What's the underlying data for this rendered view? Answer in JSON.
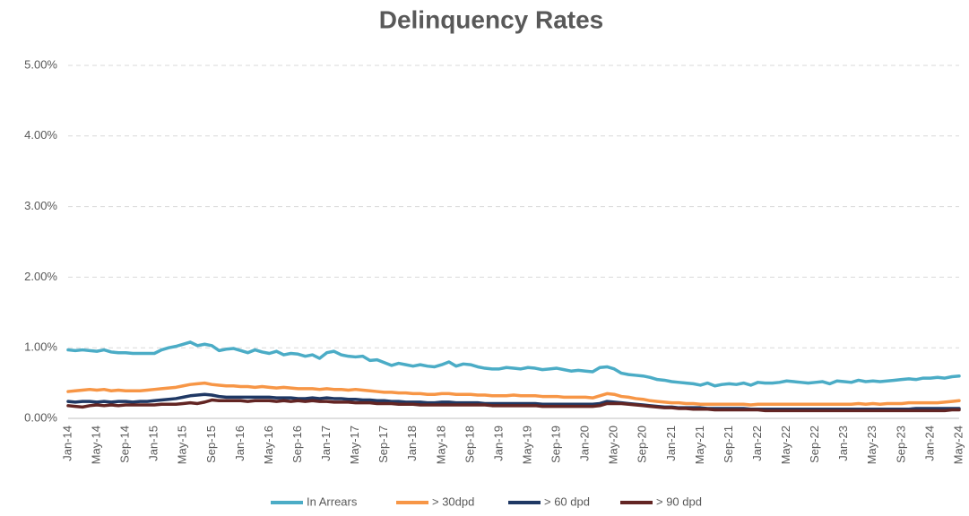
{
  "chart_data": {
    "type": "line",
    "title": "Delinquency Rates",
    "categories": [
      "Jan-14",
      null,
      null,
      null,
      "May-14",
      null,
      null,
      null,
      "Sep-14",
      null,
      null,
      null,
      "Jan-15",
      null,
      null,
      null,
      "May-15",
      null,
      null,
      null,
      "Sep-15",
      null,
      null,
      null,
      "Jan-16",
      null,
      null,
      null,
      "May-16",
      null,
      null,
      null,
      "Sep-16",
      null,
      null,
      null,
      "Jan-17",
      null,
      null,
      null,
      "May-17",
      null,
      null,
      null,
      "Sep-17",
      null,
      null,
      null,
      "Jan-18",
      null,
      null,
      null,
      "May-18",
      null,
      null,
      null,
      "Sep-18",
      null,
      null,
      null,
      "Jan-19",
      null,
      null,
      null,
      "May-19",
      null,
      null,
      null,
      "Sep-19",
      null,
      null,
      null,
      "Jan-20",
      null,
      null,
      null,
      "May-20",
      null,
      null,
      null,
      "Sep-20",
      null,
      null,
      null,
      "Jan-21",
      null,
      null,
      null,
      "May-21",
      null,
      null,
      null,
      "Sep-21",
      null,
      null,
      null,
      "Jan-22",
      null,
      null,
      null,
      "May-22",
      null,
      null,
      null,
      "Sep-22",
      null,
      null,
      null,
      "Jan-23",
      null,
      null,
      null,
      "May-23",
      null,
      null,
      null,
      "Sep-23",
      null,
      null,
      null,
      "Jan-24",
      null,
      null,
      null,
      "May-24"
    ],
    "series": [
      {
        "name": "In Arrears",
        "color": "#4bacc6",
        "values": [
          0.97,
          0.96,
          0.97,
          0.96,
          0.95,
          0.97,
          0.94,
          0.93,
          0.93,
          0.92,
          0.92,
          0.92,
          0.92,
          0.97,
          1.0,
          1.02,
          1.05,
          1.08,
          1.03,
          1.05,
          1.03,
          0.96,
          0.98,
          0.99,
          0.96,
          0.93,
          0.97,
          0.94,
          0.92,
          0.95,
          0.9,
          0.92,
          0.91,
          0.88,
          0.9,
          0.85,
          0.93,
          0.95,
          0.9,
          0.88,
          0.87,
          0.88,
          0.82,
          0.83,
          0.79,
          0.75,
          0.78,
          0.76,
          0.74,
          0.76,
          0.74,
          0.73,
          0.76,
          0.8,
          0.74,
          0.77,
          0.76,
          0.73,
          0.71,
          0.7,
          0.7,
          0.72,
          0.71,
          0.7,
          0.72,
          0.71,
          0.69,
          0.7,
          0.71,
          0.69,
          0.67,
          0.68,
          0.67,
          0.66,
          0.72,
          0.73,
          0.7,
          0.64,
          0.62,
          0.61,
          0.6,
          0.58,
          0.55,
          0.54,
          0.52,
          0.51,
          0.5,
          0.49,
          0.47,
          0.5,
          0.46,
          0.48,
          0.49,
          0.48,
          0.5,
          0.47,
          0.51,
          0.5,
          0.5,
          0.51,
          0.53,
          0.52,
          0.51,
          0.5,
          0.51,
          0.52,
          0.49,
          0.53,
          0.52,
          0.51,
          0.54,
          0.52,
          0.53,
          0.52,
          0.53,
          0.54,
          0.55,
          0.56,
          0.55,
          0.57,
          0.57,
          0.58,
          0.57,
          0.59,
          0.6
        ]
      },
      {
        "name": "> 30dpd",
        "color": "#f79646",
        "values": [
          0.38,
          0.39,
          0.4,
          0.41,
          0.4,
          0.41,
          0.39,
          0.4,
          0.39,
          0.39,
          0.39,
          0.4,
          0.41,
          0.42,
          0.43,
          0.44,
          0.46,
          0.48,
          0.49,
          0.5,
          0.48,
          0.47,
          0.46,
          0.46,
          0.45,
          0.45,
          0.44,
          0.45,
          0.44,
          0.43,
          0.44,
          0.43,
          0.42,
          0.42,
          0.42,
          0.41,
          0.42,
          0.41,
          0.41,
          0.4,
          0.41,
          0.4,
          0.39,
          0.38,
          0.37,
          0.37,
          0.36,
          0.36,
          0.35,
          0.35,
          0.34,
          0.34,
          0.35,
          0.35,
          0.34,
          0.34,
          0.34,
          0.33,
          0.33,
          0.32,
          0.32,
          0.32,
          0.33,
          0.32,
          0.32,
          0.32,
          0.31,
          0.31,
          0.31,
          0.3,
          0.3,
          0.3,
          0.3,
          0.29,
          0.32,
          0.35,
          0.34,
          0.31,
          0.3,
          0.28,
          0.27,
          0.25,
          0.24,
          0.23,
          0.22,
          0.22,
          0.21,
          0.21,
          0.2,
          0.2,
          0.2,
          0.2,
          0.2,
          0.2,
          0.2,
          0.19,
          0.2,
          0.2,
          0.2,
          0.2,
          0.2,
          0.2,
          0.2,
          0.2,
          0.2,
          0.2,
          0.2,
          0.2,
          0.2,
          0.2,
          0.21,
          0.2,
          0.21,
          0.2,
          0.21,
          0.21,
          0.21,
          0.22,
          0.22,
          0.22,
          0.22,
          0.22,
          0.23,
          0.24,
          0.25
        ]
      },
      {
        "name": "> 60 dpd",
        "color": "#1f3864",
        "values": [
          0.24,
          0.23,
          0.24,
          0.24,
          0.23,
          0.24,
          0.23,
          0.24,
          0.24,
          0.23,
          0.24,
          0.24,
          0.25,
          0.26,
          0.27,
          0.28,
          0.3,
          0.32,
          0.33,
          0.34,
          0.33,
          0.31,
          0.3,
          0.3,
          0.3,
          0.3,
          0.3,
          0.3,
          0.3,
          0.29,
          0.29,
          0.29,
          0.28,
          0.28,
          0.29,
          0.28,
          0.29,
          0.28,
          0.28,
          0.27,
          0.27,
          0.26,
          0.26,
          0.25,
          0.25,
          0.24,
          0.24,
          0.23,
          0.23,
          0.23,
          0.22,
          0.22,
          0.23,
          0.23,
          0.22,
          0.22,
          0.22,
          0.22,
          0.21,
          0.21,
          0.21,
          0.21,
          0.21,
          0.21,
          0.21,
          0.21,
          0.2,
          0.2,
          0.2,
          0.2,
          0.2,
          0.2,
          0.2,
          0.2,
          0.21,
          0.24,
          0.23,
          0.22,
          0.21,
          0.2,
          0.19,
          0.18,
          0.17,
          0.16,
          0.16,
          0.15,
          0.15,
          0.15,
          0.15,
          0.14,
          0.14,
          0.14,
          0.14,
          0.14,
          0.14,
          0.13,
          0.13,
          0.13,
          0.13,
          0.13,
          0.13,
          0.13,
          0.13,
          0.13,
          0.13,
          0.13,
          0.13,
          0.13,
          0.13,
          0.13,
          0.13,
          0.13,
          0.13,
          0.13,
          0.13,
          0.13,
          0.13,
          0.13,
          0.14,
          0.14,
          0.14,
          0.14,
          0.14,
          0.14,
          0.14
        ]
      },
      {
        "name": "> 90 dpd",
        "color": "#632523",
        "values": [
          0.18,
          0.17,
          0.16,
          0.18,
          0.19,
          0.18,
          0.19,
          0.18,
          0.19,
          0.19,
          0.19,
          0.19,
          0.19,
          0.2,
          0.2,
          0.2,
          0.21,
          0.22,
          0.21,
          0.23,
          0.26,
          0.25,
          0.25,
          0.25,
          0.25,
          0.24,
          0.25,
          0.25,
          0.25,
          0.24,
          0.25,
          0.24,
          0.25,
          0.24,
          0.25,
          0.24,
          0.24,
          0.23,
          0.23,
          0.23,
          0.22,
          0.22,
          0.22,
          0.21,
          0.21,
          0.21,
          0.2,
          0.2,
          0.2,
          0.19,
          0.19,
          0.19,
          0.19,
          0.19,
          0.19,
          0.19,
          0.19,
          0.19,
          0.19,
          0.18,
          0.18,
          0.18,
          0.18,
          0.18,
          0.18,
          0.18,
          0.17,
          0.17,
          0.17,
          0.17,
          0.17,
          0.17,
          0.17,
          0.17,
          0.18,
          0.21,
          0.21,
          0.21,
          0.2,
          0.19,
          0.18,
          0.17,
          0.16,
          0.15,
          0.15,
          0.14,
          0.14,
          0.13,
          0.13,
          0.13,
          0.12,
          0.12,
          0.12,
          0.12,
          0.12,
          0.12,
          0.12,
          0.11,
          0.11,
          0.11,
          0.11,
          0.11,
          0.11,
          0.11,
          0.11,
          0.11,
          0.11,
          0.11,
          0.11,
          0.11,
          0.11,
          0.11,
          0.11,
          0.11,
          0.11,
          0.11,
          0.11,
          0.11,
          0.11,
          0.11,
          0.11,
          0.11,
          0.11,
          0.12,
          0.12
        ]
      }
    ],
    "ylim": [
      0,
      5
    ],
    "yticks": [
      {
        "value": 0,
        "label": "0.00%"
      },
      {
        "value": 1,
        "label": "1.00%"
      },
      {
        "value": 2,
        "label": "2.00%"
      },
      {
        "value": 3,
        "label": "3.00%"
      },
      {
        "value": 4,
        "label": "4.00%"
      },
      {
        "value": 5,
        "label": "5.00%"
      }
    ],
    "grid": true,
    "legend": "bottom"
  }
}
